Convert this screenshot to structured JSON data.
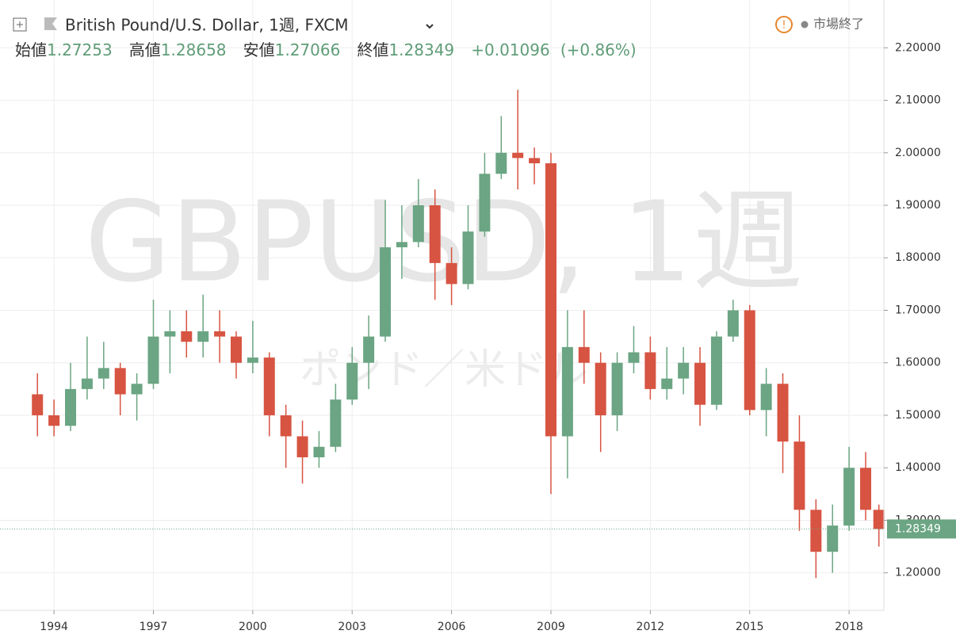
{
  "chart_data": {
    "type": "candlestick",
    "title": "British Pound/U.S. Dollar, 1週, FXCM",
    "market_status": "市場終了",
    "watermark": "GBPUSD, 1週",
    "watermark_subtitle": "ポンド／米ドル",
    "summary": {
      "open_label": "始値",
      "open": 1.27253,
      "high_label": "高値",
      "high": 1.28658,
      "low_label": "安値",
      "low": 1.27066,
      "close_label": "終値",
      "close": 1.28349,
      "change": "+0.01096",
      "change_percent": "(+0.86%)"
    },
    "x": [
      1993.5,
      1994.0,
      1994.5,
      1995.0,
      1995.5,
      1996.0,
      1996.5,
      1997.0,
      1997.5,
      1998.0,
      1998.5,
      1999.0,
      1999.5,
      2000.0,
      2000.5,
      2001.0,
      2001.5,
      2002.0,
      2002.5,
      2003.0,
      2003.5,
      2004.0,
      2004.5,
      2005.0,
      2005.5,
      2006.0,
      2006.5,
      2007.0,
      2007.5,
      2008.0,
      2008.5,
      2009.0,
      2009.5,
      2010.0,
      2010.5,
      2011.0,
      2011.5,
      2012.0,
      2012.5,
      2013.0,
      2013.5,
      2014.0,
      2014.5,
      2015.0,
      2015.5,
      2016.0,
      2016.5,
      2017.0,
      2017.5,
      2018.0,
      2018.5,
      2018.9
    ],
    "open": [
      1.54,
      1.5,
      1.48,
      1.55,
      1.57,
      1.59,
      1.54,
      1.56,
      1.65,
      1.66,
      1.64,
      1.66,
      1.65,
      1.6,
      1.61,
      1.5,
      1.46,
      1.42,
      1.44,
      1.53,
      1.6,
      1.65,
      1.82,
      1.83,
      1.9,
      1.79,
      1.75,
      1.85,
      1.96,
      2.0,
      1.99,
      1.98,
      1.46,
      1.63,
      1.6,
      1.5,
      1.6,
      1.62,
      1.55,
      1.57,
      1.6,
      1.52,
      1.65,
      1.7,
      1.51,
      1.56,
      1.45,
      1.32,
      1.24,
      1.29,
      1.4,
      1.32
    ],
    "high": [
      1.58,
      1.53,
      1.6,
      1.65,
      1.64,
      1.6,
      1.58,
      1.72,
      1.7,
      1.7,
      1.73,
      1.7,
      1.66,
      1.68,
      1.62,
      1.52,
      1.49,
      1.47,
      1.56,
      1.63,
      1.69,
      1.91,
      1.9,
      1.95,
      1.93,
      1.82,
      1.9,
      2.0,
      2.07,
      2.12,
      2.01,
      2.0,
      1.7,
      1.7,
      1.62,
      1.62,
      1.67,
      1.65,
      1.63,
      1.63,
      1.63,
      1.66,
      1.72,
      1.71,
      1.59,
      1.58,
      1.5,
      1.34,
      1.33,
      1.44,
      1.43,
      1.33
    ],
    "low": [
      1.46,
      1.46,
      1.47,
      1.53,
      1.55,
      1.5,
      1.49,
      1.55,
      1.58,
      1.61,
      1.61,
      1.6,
      1.57,
      1.58,
      1.46,
      1.4,
      1.37,
      1.4,
      1.43,
      1.52,
      1.55,
      1.64,
      1.76,
      1.82,
      1.72,
      1.71,
      1.74,
      1.84,
      1.95,
      1.93,
      1.94,
      1.35,
      1.38,
      1.56,
      1.43,
      1.47,
      1.58,
      1.53,
      1.53,
      1.54,
      1.48,
      1.51,
      1.64,
      1.5,
      1.46,
      1.39,
      1.28,
      1.19,
      1.2,
      1.28,
      1.3,
      1.25
    ],
    "close": [
      1.5,
      1.48,
      1.55,
      1.57,
      1.59,
      1.54,
      1.56,
      1.65,
      1.66,
      1.64,
      1.66,
      1.65,
      1.6,
      1.61,
      1.5,
      1.46,
      1.42,
      1.44,
      1.53,
      1.6,
      1.65,
      1.82,
      1.83,
      1.9,
      1.79,
      1.75,
      1.85,
      1.96,
      2.0,
      1.99,
      1.98,
      1.46,
      1.63,
      1.6,
      1.5,
      1.6,
      1.62,
      1.55,
      1.57,
      1.6,
      1.52,
      1.65,
      1.7,
      1.51,
      1.56,
      1.45,
      1.32,
      1.24,
      1.29,
      1.4,
      1.32,
      1.28349
    ],
    "up_color": "#6ba583",
    "down_color": "#d75442",
    "xlim": [
      1992.37,
      2019.05
    ],
    "xticks": [
      1994,
      1997,
      2000,
      2003,
      2006,
      2009,
      2012,
      2015,
      2018
    ],
    "ylim": [
      1.1286,
      2.291
    ],
    "yticks": [
      {
        "value": 1.2,
        "label": "1.20000"
      },
      {
        "value": 1.3,
        "label": "1.30000"
      },
      {
        "value": 1.4,
        "label": "1.40000"
      },
      {
        "value": 1.5,
        "label": "1.50000"
      },
      {
        "value": 1.6,
        "label": "1.60000"
      },
      {
        "value": 1.7,
        "label": "1.70000"
      },
      {
        "value": 1.8,
        "label": "1.80000"
      },
      {
        "value": 1.9,
        "label": "1.90000"
      },
      {
        "value": 2.0,
        "label": "2.00000"
      },
      {
        "value": 2.1,
        "label": "2.10000"
      },
      {
        "value": 2.2,
        "label": "2.20000"
      }
    ],
    "grid": true
  }
}
